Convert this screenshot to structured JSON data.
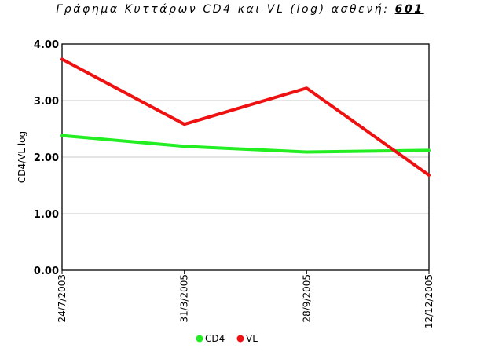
{
  "title": {
    "prefix": "Γράφημα Κυττάρων CD4 και VL (log) ασθενή:",
    "patient_id": "601"
  },
  "colors": {
    "cd4": "#22ee22",
    "vl": "#ee1111",
    "grid": "#c8c8c8",
    "axis": "#000000"
  },
  "chart_data": {
    "type": "line",
    "title": "Γράφημα Κυττάρων CD4 και VL (log) ασθενή: 601",
    "xlabel": "",
    "ylabel": "CD4/VL log",
    "categories": [
      "24/7/2003",
      "31/3/2005",
      "28/9/2005",
      "12/12/2005"
    ],
    "ylim": [
      0,
      4
    ],
    "y_ticks": [
      "0.00",
      "1.00",
      "2.00",
      "3.00",
      "4.00"
    ],
    "grid": true,
    "legend": "bottom",
    "series": [
      {
        "name": "CD4",
        "color": "#22ee22",
        "values": [
          2.38,
          2.19,
          2.09,
          2.12
        ]
      },
      {
        "name": "VL",
        "color": "#ee1111",
        "values": [
          3.73,
          2.58,
          3.22,
          1.68
        ]
      }
    ]
  }
}
